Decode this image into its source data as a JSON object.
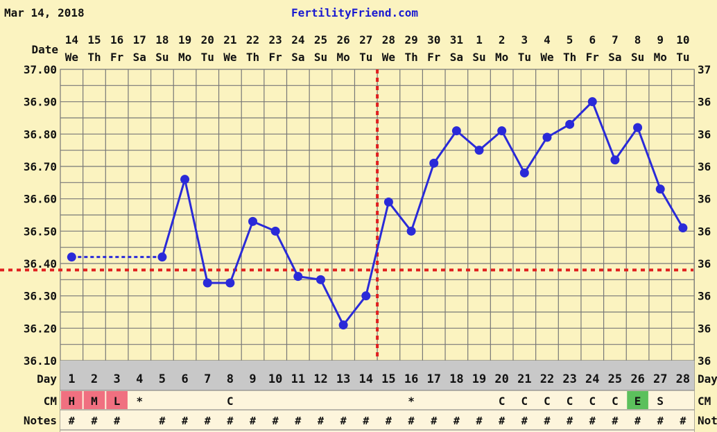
{
  "header": {
    "date": "Mar 14, 2018",
    "site": "FertilityFriend.com"
  },
  "colors": {
    "bg": "#fbf3c0",
    "line": "#2a2ad8",
    "coverline": "#e02020",
    "grid": "#777777",
    "dayrow": "#c8c8c8",
    "cm_pink": "#f07080",
    "cm_green": "#5cc05c"
  },
  "chart_data": {
    "type": "line",
    "title": "",
    "xlabel": "Date",
    "ylabel": "",
    "ylim": [
      36.1,
      37.0
    ],
    "yticks": [
      "37.00",
      "36.90",
      "36.80",
      "36.70",
      "36.60",
      "36.50",
      "36.40",
      "36.30",
      "36.20",
      "36.10"
    ],
    "right_yticks": [
      "37",
      "36",
      "36",
      "36",
      "36",
      "36",
      "36",
      "36",
      "36",
      "36"
    ],
    "dates": [
      "14",
      "15",
      "16",
      "17",
      "18",
      "19",
      "20",
      "21",
      "22",
      "23",
      "24",
      "25",
      "26",
      "27",
      "28",
      "29",
      "30",
      "31",
      "1",
      "2",
      "3",
      "4",
      "5",
      "6",
      "7",
      "8",
      "9",
      "10"
    ],
    "weekdays": [
      "We",
      "Th",
      "Fr",
      "Sa",
      "Su",
      "Mo",
      "Tu",
      "We",
      "Th",
      "Fr",
      "Sa",
      "Su",
      "Mo",
      "Tu",
      "We",
      "Th",
      "Fr",
      "Sa",
      "Su",
      "Mo",
      "Tu",
      "We",
      "Th",
      "Fr",
      "Sa",
      "Su",
      "Mo",
      "Tu"
    ],
    "days": [
      1,
      2,
      3,
      4,
      5,
      6,
      7,
      8,
      9,
      10,
      11,
      12,
      13,
      14,
      15,
      16,
      17,
      18,
      19,
      20,
      21,
      22,
      23,
      24,
      25,
      26,
      27,
      28
    ],
    "series": [
      {
        "name": "BBT",
        "values": [
          36.42,
          null,
          null,
          null,
          36.42,
          36.66,
          36.34,
          36.34,
          36.53,
          36.5,
          36.36,
          36.35,
          36.21,
          36.3,
          36.59,
          36.5,
          36.71,
          36.81,
          36.75,
          36.81,
          36.68,
          36.79,
          36.83,
          36.9,
          36.72,
          36.82,
          36.63,
          36.51
        ]
      }
    ],
    "coverline": 36.38,
    "ovulation_day": 14,
    "row_labels": {
      "date": "Date",
      "day": "Day",
      "cm": "CM",
      "notes": "Notes"
    },
    "right_row_labels": {
      "day": "Day",
      "cm": "CM",
      "notes": "Notes"
    },
    "cm": [
      "H",
      "M",
      "L",
      "*",
      "",
      "",
      "",
      "C",
      "",
      "",
      "",
      "",
      "",
      "",
      "",
      "*",
      "",
      "",
      "",
      "C",
      "C",
      "C",
      "C",
      "C",
      "C",
      "E",
      "S",
      ""
    ],
    "notes": [
      "#",
      "#",
      "#",
      "",
      "#",
      "#",
      "#",
      "#",
      "#",
      "#",
      "#",
      "#",
      "#",
      "#",
      "#",
      "#",
      "#",
      "#",
      "#",
      "#",
      "#",
      "#",
      "#",
      "#",
      "#",
      "#",
      "#",
      "#"
    ]
  }
}
